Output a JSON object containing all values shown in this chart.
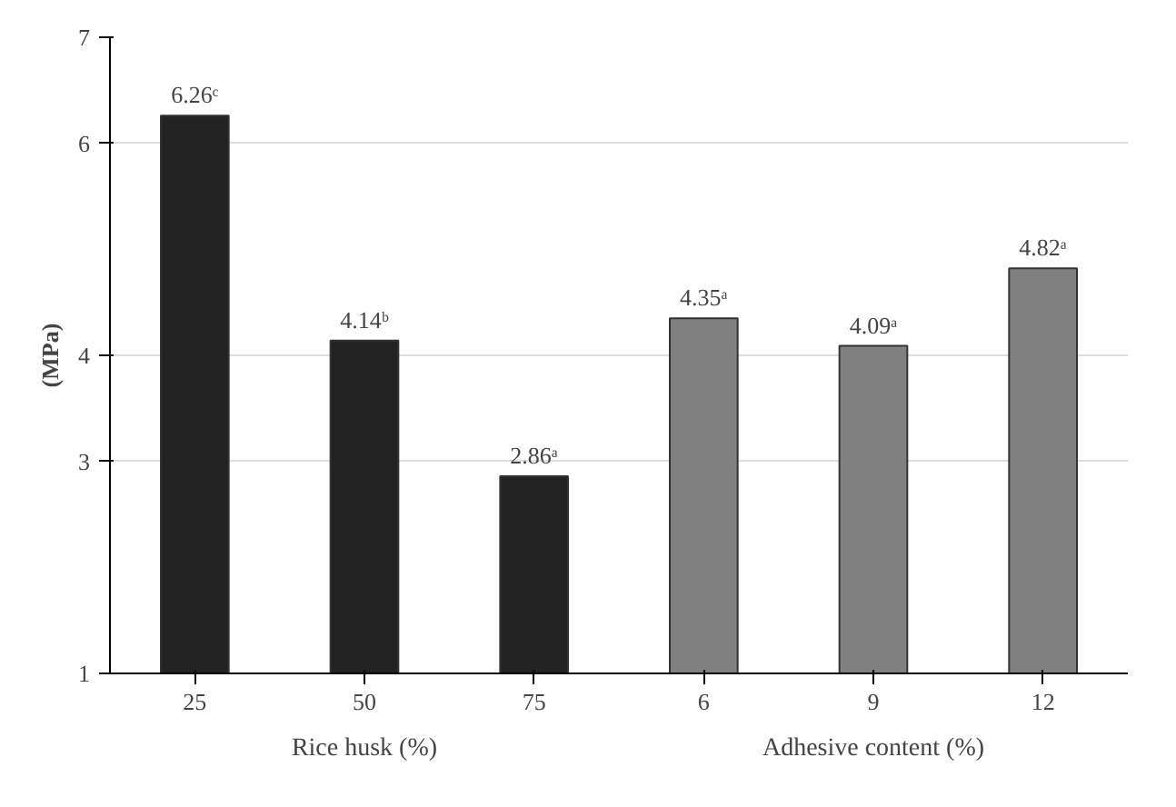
{
  "chart_data": {
    "type": "bar",
    "ylabel": "(MPa)",
    "categories": [
      "25",
      "50",
      "75",
      "6",
      "9",
      "12"
    ],
    "values": [
      6.26,
      4.14,
      2.86,
      4.35,
      4.09,
      4.82
    ],
    "colors": [
      "#222222",
      "#222222",
      "#222222",
      "#808080",
      "#808080",
      "#808080"
    ],
    "value_labels": [
      "6.26ᶜ",
      "4.14ᵇ",
      "2.86ᵃ",
      "4.35ᵃ",
      "4.09ᵃ",
      "4.82ᵃ"
    ],
    "ylim": [
      1,
      7
    ],
    "yticks": [
      1,
      3,
      4,
      6,
      7
    ],
    "grid": "y",
    "annotations": [
      "Rice husk (%)",
      "Adhesive content (%)"
    ]
  }
}
